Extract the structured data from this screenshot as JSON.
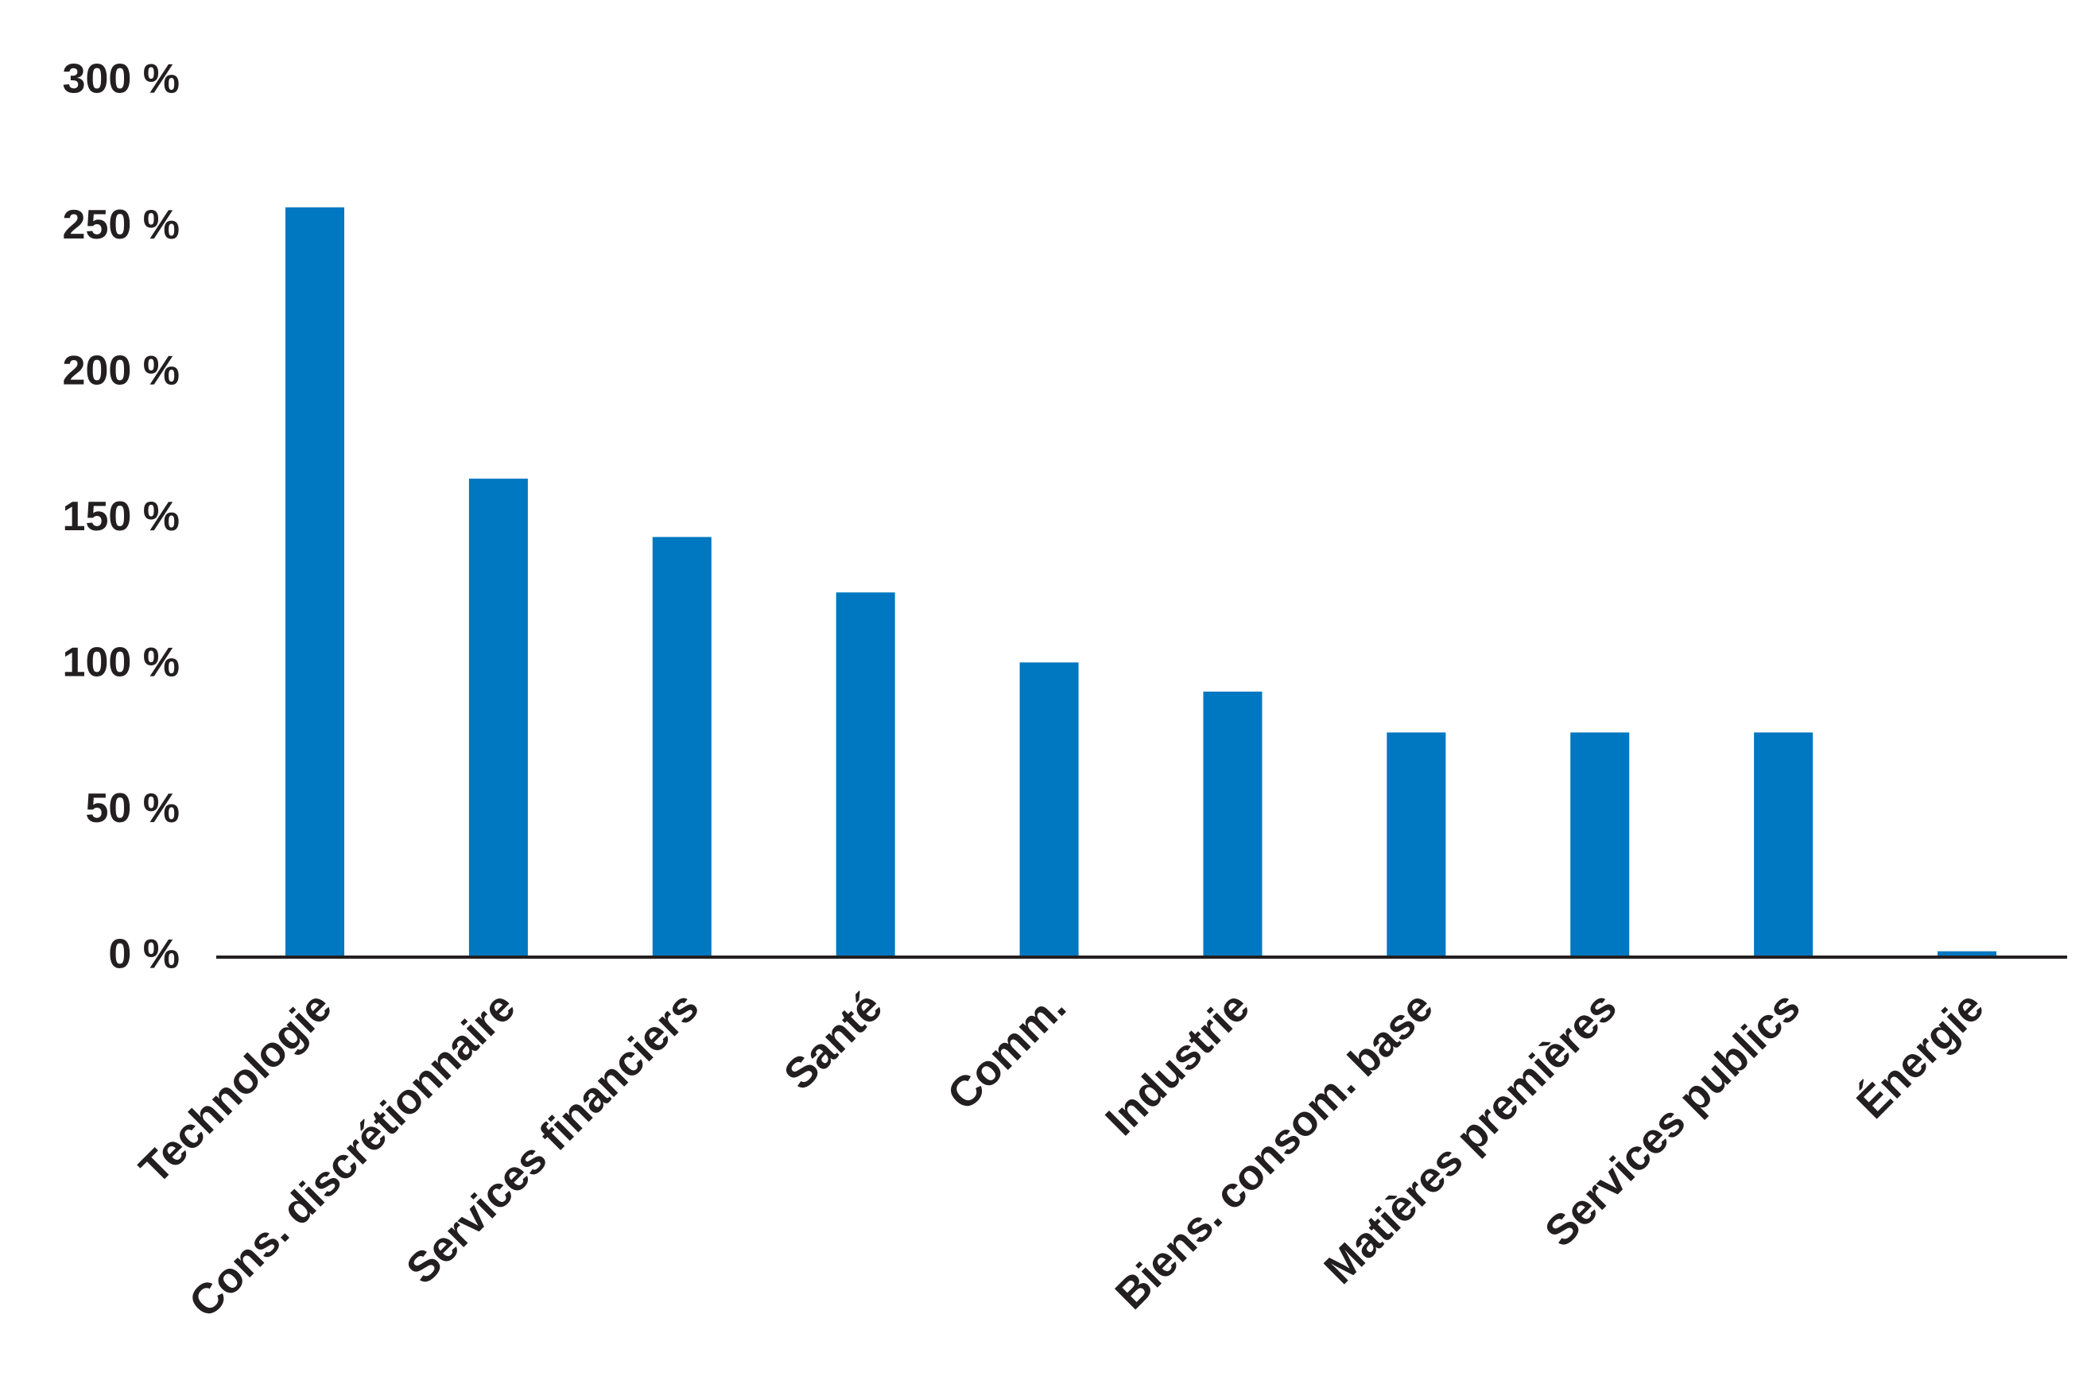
{
  "chart_data": {
    "type": "bar",
    "title": "",
    "xlabel": "",
    "ylabel": "",
    "categories": [
      "Technologie",
      "Cons. discrétionnaire",
      "Services financiers",
      "Santé",
      "Comm.",
      "Industrie",
      "Biens. consom. base",
      "Matières premières",
      "Services publics",
      "Énergie"
    ],
    "values": [
      257,
      164,
      144,
      125,
      101,
      91,
      77,
      77,
      77,
      2
    ],
    "ylim": [
      0,
      300
    ],
    "yticks": [
      {
        "value": 0,
        "label": "0 %"
      },
      {
        "value": 50,
        "label": "50 %"
      },
      {
        "value": 100,
        "label": "100 %"
      },
      {
        "value": 150,
        "label": "150 %"
      },
      {
        "value": 200,
        "label": "200 %"
      },
      {
        "value": 250,
        "label": "250 %"
      },
      {
        "value": 300,
        "label": "300 %"
      }
    ],
    "grid": false,
    "legend": "none",
    "bar_color": "#0077c1",
    "axis_color": "#231f20"
  }
}
